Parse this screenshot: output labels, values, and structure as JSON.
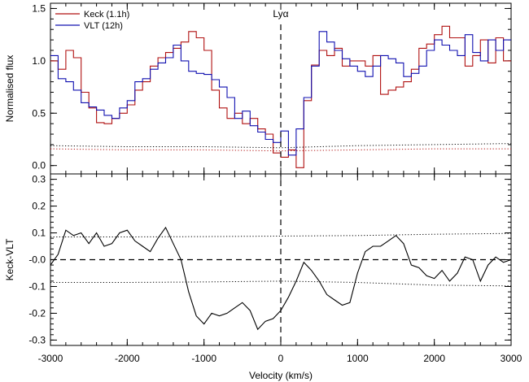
{
  "colors": {
    "keck": "#b01010",
    "vlt": "#1010b0",
    "axis": "#000000",
    "background": "#ffffff"
  },
  "chart_data": [
    {
      "type": "line",
      "panel": "top",
      "title": "",
      "xlabel": "",
      "ylabel": "Normalised flux",
      "xlim": [
        -3000,
        3000
      ],
      "ylim": [
        -0.08,
        1.55
      ],
      "yticks": [
        0.0,
        0.5,
        1.0,
        1.5
      ],
      "ytick_labels": [
        "0.0",
        "0.5",
        "1.0",
        "1.5"
      ],
      "xticks": [
        -3000,
        -2000,
        -1000,
        0,
        1000,
        2000,
        3000
      ],
      "grid": false,
      "legend": {
        "position": "top-left",
        "entries": [
          "Keck (1.1h)",
          "VLT (12h)"
        ]
      },
      "annotation": {
        "label": "Lyα",
        "x": 0
      },
      "series": [
        {
          "name": "Keck (1.1h)",
          "style": "step",
          "color": "#b01010",
          "x": [
            -3000,
            -2900,
            -2800,
            -2700,
            -2600,
            -2500,
            -2400,
            -2300,
            -2200,
            -2100,
            -2000,
            -1900,
            -1800,
            -1700,
            -1600,
            -1500,
            -1400,
            -1300,
            -1200,
            -1100,
            -1000,
            -900,
            -800,
            -700,
            -600,
            -500,
            -400,
            -300,
            -200,
            -100,
            0,
            100,
            200,
            300,
            400,
            500,
            600,
            700,
            800,
            900,
            1000,
            1100,
            1200,
            1300,
            1400,
            1500,
            1600,
            1700,
            1800,
            1900,
            2000,
            2100,
            2200,
            2300,
            2400,
            2500,
            2600,
            2700,
            2800,
            2900
          ],
          "values": [
            1.0,
            0.92,
            1.1,
            1.03,
            0.7,
            0.55,
            0.41,
            0.4,
            0.45,
            0.5,
            0.58,
            0.72,
            0.8,
            0.95,
            1.03,
            1.08,
            1.12,
            1.18,
            1.28,
            1.22,
            1.1,
            0.72,
            0.55,
            0.45,
            0.5,
            0.4,
            0.45,
            0.35,
            0.3,
            0.12,
            0.08,
            0.15,
            -0.02,
            0.62,
            0.96,
            1.1,
            1.05,
            1.12,
            0.95,
            1.0,
            1.0,
            0.95,
            1.05,
            0.68,
            0.72,
            0.75,
            0.8,
            0.92,
            1.12,
            1.16,
            1.25,
            1.33,
            1.22,
            1.22,
            0.95,
            1.05,
            1.2,
            0.98,
            1.22,
            1.0
          ]
        },
        {
          "name": "VLT (12h)",
          "style": "step",
          "color": "#1010b0",
          "x": [
            -3000,
            -2900,
            -2800,
            -2700,
            -2600,
            -2500,
            -2400,
            -2300,
            -2200,
            -2100,
            -2000,
            -1900,
            -1800,
            -1700,
            -1600,
            -1500,
            -1400,
            -1300,
            -1200,
            -1100,
            -1000,
            -900,
            -800,
            -700,
            -600,
            -500,
            -400,
            -300,
            -200,
            -100,
            0,
            100,
            200,
            300,
            400,
            500,
            600,
            700,
            800,
            900,
            1000,
            1100,
            1200,
            1300,
            1400,
            1500,
            1600,
            1700,
            1800,
            1900,
            2000,
            2100,
            2200,
            2300,
            2400,
            2500,
            2600,
            2700,
            2800,
            2900
          ],
          "values": [
            1.05,
            0.83,
            0.8,
            0.72,
            0.6,
            0.56,
            0.53,
            0.48,
            0.45,
            0.55,
            0.62,
            0.8,
            0.83,
            0.92,
            0.98,
            1.03,
            1.15,
            1.0,
            0.9,
            0.88,
            0.87,
            0.82,
            0.75,
            0.65,
            0.45,
            0.52,
            0.38,
            0.32,
            0.25,
            0.22,
            0.33,
            0.1,
            0.35,
            0.65,
            0.95,
            1.28,
            1.18,
            1.1,
            1.02,
            0.95,
            0.9,
            0.85,
            0.95,
            1.05,
            1.02,
            0.98,
            0.85,
            0.88,
            0.95,
            1.1,
            1.2,
            1.15,
            1.1,
            1.05,
            1.25,
            1.08,
            1.0,
            1.2,
            1.1,
            1.2
          ]
        },
        {
          "name": "",
          "style": "dotted",
          "color": "#000000",
          "x": [
            -3000,
            -2000,
            -1000,
            0,
            1000,
            2000,
            3000
          ],
          "values": [
            0.19,
            0.18,
            0.18,
            0.17,
            0.19,
            0.2,
            0.21
          ]
        },
        {
          "name": "",
          "style": "dotted",
          "color": "#b01010",
          "x": [
            -3000,
            -2000,
            -1000,
            0,
            1000,
            2000,
            3000
          ],
          "values": [
            0.16,
            0.15,
            0.15,
            0.14,
            0.15,
            0.16,
            0.16
          ]
        }
      ]
    },
    {
      "type": "line",
      "panel": "bottom",
      "title": "",
      "xlabel": "Velocity (km/s)",
      "ylabel": "Keck-VLT",
      "xlim": [
        -3000,
        3000
      ],
      "ylim": [
        -0.32,
        0.32
      ],
      "yticks": [
        -0.3,
        -0.2,
        -0.1,
        0.0,
        0.1,
        0.2,
        0.3
      ],
      "ytick_labels": [
        "-0.3",
        "-0.2",
        "-0.1",
        "-0.0",
        "0.1",
        "0.2",
        "0.3"
      ],
      "xticks": [
        -3000,
        -2000,
        -1000,
        0,
        1000,
        2000,
        3000
      ],
      "xtick_labels": [
        "-3000",
        "-2000",
        "-1000",
        "0",
        "1000",
        "2000",
        "3000"
      ],
      "grid": false,
      "series": [
        {
          "name": "",
          "style": "solid",
          "color": "#000000",
          "x": [
            -3000,
            -2900,
            -2800,
            -2700,
            -2600,
            -2500,
            -2400,
            -2300,
            -2200,
            -2100,
            -2000,
            -1900,
            -1800,
            -1700,
            -1600,
            -1500,
            -1400,
            -1300,
            -1200,
            -1100,
            -1000,
            -900,
            -800,
            -700,
            -600,
            -500,
            -400,
            -300,
            -200,
            -100,
            0,
            100,
            200,
            300,
            400,
            500,
            600,
            700,
            800,
            900,
            1000,
            1100,
            1200,
            1300,
            1400,
            1500,
            1600,
            1700,
            1800,
            1900,
            2000,
            2100,
            2200,
            2300,
            2400,
            2500,
            2600,
            2700,
            2800,
            2900,
            3000
          ],
          "values": [
            -0.02,
            0.02,
            0.11,
            0.09,
            0.1,
            0.06,
            0.1,
            0.05,
            0.06,
            0.1,
            0.11,
            0.07,
            0.05,
            0.03,
            0.08,
            0.12,
            0.06,
            0.0,
            -0.12,
            -0.21,
            -0.24,
            -0.2,
            -0.21,
            -0.2,
            -0.18,
            -0.16,
            -0.19,
            -0.26,
            -0.23,
            -0.22,
            -0.19,
            -0.14,
            -0.08,
            -0.01,
            -0.04,
            -0.08,
            -0.13,
            -0.15,
            -0.17,
            -0.16,
            -0.05,
            0.03,
            0.05,
            0.05,
            0.07,
            0.09,
            0.06,
            -0.02,
            -0.03,
            -0.06,
            -0.07,
            -0.04,
            -0.08,
            -0.05,
            0.01,
            0.0,
            -0.08,
            -0.02,
            0.01,
            -0.01,
            0.0
          ]
        },
        {
          "name": "",
          "style": "dashed",
          "color": "#000000",
          "x": [
            -3000,
            3000
          ],
          "values": [
            0.0,
            0.0
          ]
        },
        {
          "name": "",
          "style": "dotted",
          "color": "#000000",
          "x": [
            -3000,
            -2000,
            -1000,
            0,
            1000,
            2000,
            3000
          ],
          "values": [
            0.085,
            0.085,
            0.086,
            0.088,
            0.09,
            0.095,
            0.098
          ]
        },
        {
          "name": "",
          "style": "dotted",
          "color": "#000000",
          "x": [
            -3000,
            -2000,
            -1000,
            0,
            1000,
            2000,
            3000
          ],
          "values": [
            -0.085,
            -0.085,
            -0.083,
            -0.08,
            -0.085,
            -0.095,
            -0.098
          ]
        }
      ]
    }
  ]
}
